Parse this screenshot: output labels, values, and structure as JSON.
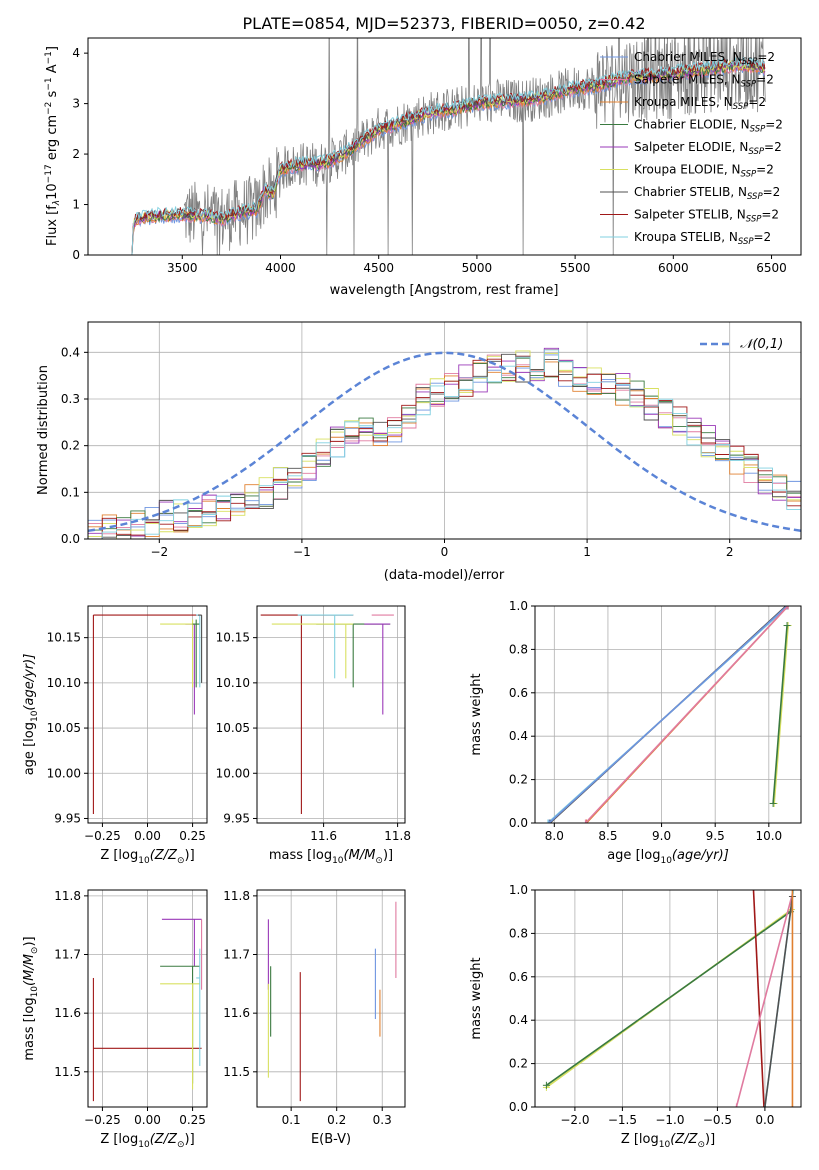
{
  "title": "PLATE=0854, MJD=52373, FIBERID=0050, z=0.42",
  "series_names": [
    "Chabrier MILES",
    "Salpeter MILES",
    "Kroupa MILES",
    "Chabrier ELODIE",
    "Salpeter ELODIE",
    "Kroupa ELODIE",
    "Chabrier STELIB",
    "Salpeter STELIB",
    "Kroupa STELIB"
  ],
  "series_suffix": ", N",
  "series_suffix_sub": "SSP",
  "series_suffix_end": "=2",
  "series_colors": [
    "#6e95e0",
    "#e07ba0",
    "#e08030",
    "#3a7a40",
    "#9a38b8",
    "#d8e060",
    "#505050",
    "#a01818",
    "#80d0e0"
  ],
  "chart_data": [
    {
      "id": "spectrum",
      "type": "line",
      "title": "PLATE=0854, MJD=52373, FIBERID=0050, z=0.42",
      "xlabel": "wavelength [Angstrom, rest frame]",
      "ylabel_parts": [
        "Flux [f",
        "λ",
        "10",
        "−17",
        " erg cm",
        "−2",
        " s",
        "−1",
        " A",
        "−1",
        "]"
      ],
      "xlim": [
        3020,
        6650
      ],
      "ylim": [
        0,
        4.3
      ],
      "xticks": [
        3500,
        4000,
        4500,
        5000,
        5500,
        6000,
        6500
      ],
      "yticks": [
        0,
        1,
        2,
        3,
        4
      ],
      "grid": false,
      "legend_position": "upper-right",
      "model_continuum": {
        "x": [
          3220,
          3260,
          3300,
          3400,
          3500,
          3600,
          3700,
          3800,
          3880,
          3920,
          3960,
          4000,
          4100,
          4200,
          4300,
          4400,
          4500,
          4600,
          4700,
          4800,
          4900,
          5000,
          5100,
          5200,
          5300,
          5400,
          5500,
          5600,
          5700,
          5800,
          5900,
          6000,
          6100,
          6200,
          6300,
          6400,
          6470
        ],
        "y": [
          0.0,
          0.7,
          0.75,
          0.78,
          0.8,
          0.78,
          0.72,
          0.85,
          0.9,
          1.3,
          1.2,
          1.7,
          1.8,
          1.8,
          1.95,
          2.2,
          2.5,
          2.6,
          2.75,
          2.85,
          2.9,
          3.0,
          3.05,
          3.05,
          3.1,
          3.2,
          3.3,
          3.35,
          3.45,
          3.55,
          3.55,
          3.6,
          3.65,
          3.7,
          3.75,
          3.75,
          3.7
        ]
      },
      "observed_flux_range_x": [
        3510,
        6470
      ]
    },
    {
      "id": "residuals",
      "type": "histogram",
      "xlabel": "(data-model)/error",
      "ylabel": "Normed distribution",
      "xlim": [
        -2.5,
        2.5
      ],
      "ylim": [
        0,
        0.465
      ],
      "xticks": [
        -2,
        -1,
        0,
        1,
        2
      ],
      "yticks": [
        0.0,
        0.1,
        0.2,
        0.3,
        0.4
      ],
      "grid": true,
      "legend_label": "𝒩(0,1)",
      "legend_position": "upper-right",
      "bin_width": 0.1,
      "bin_start": -2.5,
      "reference_curve": "standard normal pdf",
      "reference_color": "#5b84d6",
      "histogram_values": [
        0.01,
        0.02,
        0.02,
        0.03,
        0.04,
        0.05,
        0.05,
        0.05,
        0.06,
        0.07,
        0.08,
        0.09,
        0.1,
        0.12,
        0.14,
        0.16,
        0.19,
        0.21,
        0.22,
        0.24,
        0.22,
        0.24,
        0.27,
        0.3,
        0.31,
        0.33,
        0.34,
        0.35,
        0.36,
        0.37,
        0.37,
        0.37,
        0.38,
        0.36,
        0.35,
        0.34,
        0.33,
        0.32,
        0.31,
        0.29,
        0.27,
        0.25,
        0.23,
        0.21,
        0.19,
        0.17,
        0.15,
        0.13,
        0.11,
        0.09
      ]
    },
    {
      "id": "age_vs_Z",
      "type": "scatter",
      "xlabel_parts": [
        "Z [log",
        "10",
        "(Z/Z",
        "⊙",
        ")]"
      ],
      "ylabel_parts": [
        "age  [log",
        "10",
        "(age/yr)]"
      ],
      "xlim": [
        -0.33,
        0.33
      ],
      "ylim": [
        9.945,
        10.185
      ],
      "xticks": [
        -0.25,
        0.0,
        0.25
      ],
      "xticklabels": [
        "−0.25",
        "0.00",
        "0.25"
      ],
      "yticks": [
        9.95,
        10.0,
        10.05,
        10.1,
        10.15
      ],
      "grid": true,
      "points": [
        {
          "series": 7,
          "x": -0.3,
          "y": 10.175,
          "xerr_low": 0,
          "xerr_high": 0.6,
          "yerr_low": 0.22,
          "yerr_high": 0
        },
        {
          "series": 4,
          "x": 0.26,
          "y": 10.165,
          "xerr_low": 0.05,
          "xerr_high": 0.0,
          "yerr_low": 0.1,
          "yerr_high": 0.0
        },
        {
          "series": 5,
          "x": 0.25,
          "y": 10.165,
          "xerr_low": 0.18,
          "xerr_high": 0.04,
          "yerr_low": 0.07,
          "yerr_high": 0.005
        },
        {
          "series": 3,
          "x": 0.27,
          "y": 10.165,
          "xerr_low": 0.02,
          "xerr_high": 0.02,
          "yerr_low": 0.07,
          "yerr_high": 0.005
        },
        {
          "series": 8,
          "x": 0.29,
          "y": 10.175,
          "xerr_low": 0.02,
          "xerr_high": 0.0,
          "yerr_low": 0.08,
          "yerr_high": 0.0
        },
        {
          "series": 6,
          "x": 0.3,
          "y": 10.175,
          "xerr_low": 0.02,
          "xerr_high": 0.0,
          "yerr_low": 0.075,
          "yerr_high": 0.0
        }
      ]
    },
    {
      "id": "age_vs_mass",
      "type": "scatter",
      "xlabel_parts": [
        "mass [log",
        "10",
        "(M/M",
        "⊙",
        ")]"
      ],
      "xlim": [
        11.42,
        11.82
      ],
      "ylim": [
        9.945,
        10.185
      ],
      "xticks": [
        11.6,
        11.8
      ],
      "xticklabels": [
        "11.6",
        "11.8"
      ],
      "yticks": [
        9.95,
        10.0,
        10.05,
        10.1,
        10.15
      ],
      "grid": true,
      "points": [
        {
          "series": 7,
          "x": 11.54,
          "y": 10.175,
          "xerr_low": 0.11,
          "xerr_high": 0.14,
          "yerr_low": 0.22,
          "yerr_high": 0
        },
        {
          "series": 3,
          "x": 11.68,
          "y": 10.165,
          "xerr_low": 0.1,
          "xerr_high": 0.1,
          "yerr_low": 0.07,
          "yerr_high": 0
        },
        {
          "series": 4,
          "x": 11.76,
          "y": 10.165,
          "xerr_low": 0.05,
          "xerr_high": 0.02,
          "yerr_low": 0.1,
          "yerr_high": 0
        },
        {
          "series": 5,
          "x": 11.66,
          "y": 10.165,
          "xerr_low": 0.2,
          "xerr_high": 0.02,
          "yerr_low": 0.06,
          "yerr_high": 0
        },
        {
          "series": 8,
          "x": 11.63,
          "y": 10.175,
          "xerr_low": 0.1,
          "xerr_high": 0.05,
          "yerr_low": 0.07,
          "yerr_high": 0
        },
        {
          "series": 1,
          "x": 11.75,
          "y": 10.175,
          "xerr_low": 0.02,
          "xerr_high": 0.04,
          "yerr_low": 0.0,
          "yerr_high": 0
        }
      ]
    },
    {
      "id": "massweight_vs_age",
      "type": "line",
      "xlabel_parts": [
        "age  [log",
        "10",
        "(age/yr)]"
      ],
      "ylabel": "mass weight",
      "xlim": [
        7.82,
        10.3
      ],
      "ylim": [
        0,
        1
      ],
      "xticks": [
        8.0,
        8.5,
        9.0,
        9.5,
        10.0
      ],
      "xticklabels": [
        "8.0",
        "8.5",
        "9.0",
        "9.5",
        "10.0"
      ],
      "yticks": [
        0.0,
        0.2,
        0.4,
        0.6,
        0.8,
        1.0
      ],
      "grid": true,
      "lines": [
        {
          "series": 8,
          "x": [
            7.94,
            10.18
          ],
          "y": [
            0.0,
            1.0
          ]
        },
        {
          "series": 6,
          "x": [
            7.96,
            10.16
          ],
          "y": [
            0.0,
            1.0
          ]
        },
        {
          "series": 0,
          "x": [
            7.95,
            10.17
          ],
          "y": [
            0.0,
            1.0
          ]
        },
        {
          "series": 2,
          "x": [
            8.3,
            10.18
          ],
          "y": [
            0.0,
            1.0
          ]
        },
        {
          "series": 1,
          "x": [
            8.29,
            10.18
          ],
          "y": [
            0.0,
            1.0
          ]
        },
        {
          "series": 5,
          "x": [
            10.05,
            10.18
          ],
          "y": [
            0.09,
            0.91
          ]
        },
        {
          "series": 3,
          "x": [
            10.04,
            10.17
          ],
          "y": [
            0.09,
            0.91
          ]
        }
      ]
    },
    {
      "id": "mass_vs_Z",
      "type": "scatter",
      "xlabel_parts": [
        "Z [log",
        "10",
        "(Z/Z",
        "⊙",
        ")]"
      ],
      "ylabel_parts": [
        "mass [log",
        "10",
        "(M/M",
        "⊙",
        ")]"
      ],
      "xlim": [
        -0.33,
        0.33
      ],
      "ylim": [
        11.44,
        11.81
      ],
      "xticks": [
        -0.25,
        0.0,
        0.25
      ],
      "xticklabels": [
        "−0.25",
        "0.00",
        "0.25"
      ],
      "yticks": [
        11.5,
        11.6,
        11.7,
        11.8
      ],
      "grid": true,
      "points": [
        {
          "series": 7,
          "x": -0.3,
          "y": 11.54,
          "xerr_low": 0,
          "xerr_high": 0.6,
          "yerr_low": 0.09,
          "yerr_high": 0.12
        },
        {
          "series": 4,
          "x": 0.26,
          "y": 11.76,
          "xerr_low": 0.18,
          "xerr_high": 0.04,
          "yerr_low": 0.08,
          "yerr_high": 0.0
        },
        {
          "series": 3,
          "x": 0.25,
          "y": 11.68,
          "xerr_low": 0.18,
          "xerr_high": 0.04,
          "yerr_low": 0.2,
          "yerr_high": 0.0
        },
        {
          "series": 5,
          "x": 0.25,
          "y": 11.65,
          "xerr_low": 0.18,
          "xerr_high": 0.04,
          "yerr_low": 0.18,
          "yerr_high": 0.0
        },
        {
          "series": 8,
          "x": 0.29,
          "y": 11.66,
          "xerr_low": 0.02,
          "xerr_high": 0.0,
          "yerr_low": 0.15,
          "yerr_high": 0.05
        },
        {
          "series": 1,
          "x": 0.3,
          "y": 11.76,
          "xerr_low": 0.0,
          "xerr_high": 0.0,
          "yerr_low": 0.12,
          "yerr_high": 0.0
        }
      ]
    },
    {
      "id": "mass_vs_ebv",
      "type": "scatter",
      "xlabel": "E(B-V)",
      "xlim": [
        0.025,
        0.35
      ],
      "ylim": [
        11.44,
        11.81
      ],
      "xticks": [
        0.1,
        0.2,
        0.3
      ],
      "xticklabels": [
        "0.1",
        "0.2",
        "0.3"
      ],
      "yticks": [
        11.5,
        11.6,
        11.7,
        11.8
      ],
      "grid": true,
      "points": [
        {
          "series": 4,
          "x": 0.05,
          "y": 11.76,
          "yerr_low": 0.12,
          "yerr_high": 0.0
        },
        {
          "series": 5,
          "x": 0.05,
          "y": 11.65,
          "yerr_low": 0.16,
          "yerr_high": 0.0
        },
        {
          "series": 3,
          "x": 0.055,
          "y": 11.68,
          "yerr_low": 0.12,
          "yerr_high": 0.0
        },
        {
          "series": 7,
          "x": 0.12,
          "y": 11.54,
          "yerr_low": 0.09,
          "yerr_high": 0.13
        },
        {
          "series": 0,
          "x": 0.285,
          "y": 11.64,
          "yerr_low": 0.05,
          "yerr_high": 0.07
        },
        {
          "series": 2,
          "x": 0.295,
          "y": 11.6,
          "yerr_low": 0.04,
          "yerr_high": 0.04
        },
        {
          "series": 1,
          "x": 0.33,
          "y": 11.72,
          "yerr_low": 0.06,
          "yerr_high": 0.07
        }
      ]
    },
    {
      "id": "massweight_vs_Z",
      "type": "line",
      "xlabel_parts": [
        "Z [log",
        "10",
        "(Z/Z",
        "⊙",
        ")]"
      ],
      "ylabel": "mass weight",
      "xlim": [
        -2.42,
        0.38
      ],
      "ylim": [
        0,
        1
      ],
      "xticks": [
        -2.0,
        -1.5,
        -1.0,
        -0.5,
        0.0
      ],
      "xticklabels": [
        "−2.0",
        "−1.5",
        "−1.0",
        "−0.5",
        "0.0"
      ],
      "yticks": [
        0.0,
        0.2,
        0.4,
        0.6,
        0.8,
        1.0
      ],
      "grid": true,
      "lines": [
        {
          "series": 5,
          "x": [
            -2.3,
            0.28
          ],
          "y": [
            0.09,
            0.91
          ]
        },
        {
          "series": 3,
          "x": [
            -2.3,
            0.27
          ],
          "y": [
            0.1,
            0.9
          ]
        },
        {
          "series": 7,
          "x": [
            -0.12,
            -0.01
          ],
          "y": [
            1.0,
            0.0
          ]
        },
        {
          "series": 1,
          "x": [
            -0.3,
            0.3
          ],
          "y": [
            0.0,
            1.0
          ]
        },
        {
          "series": 8,
          "x": [
            0.0,
            0.3
          ],
          "y": [
            0.0,
            1.0
          ]
        },
        {
          "series": 6,
          "x": [
            0.0,
            0.29
          ],
          "y": [
            0.0,
            0.97
          ]
        },
        {
          "series": 2,
          "x": [
            0.29,
            0.29
          ],
          "y": [
            0.0,
            1.0
          ]
        }
      ]
    }
  ]
}
